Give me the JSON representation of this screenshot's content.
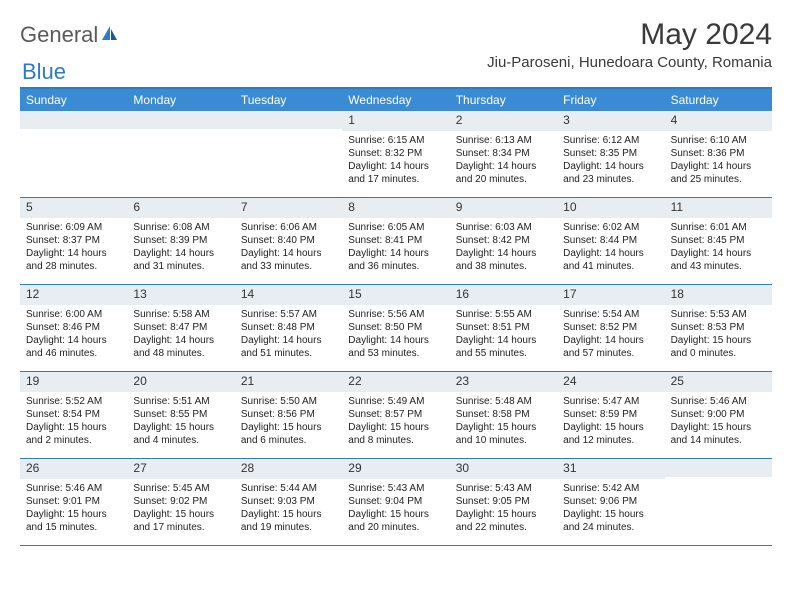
{
  "logo": {
    "general": "General",
    "blue": "Blue"
  },
  "title": "May 2024",
  "location": "Jiu-Paroseni, Hunedoara County, Romania",
  "weekdays": [
    "Sunday",
    "Monday",
    "Tuesday",
    "Wednesday",
    "Thursday",
    "Friday",
    "Saturday"
  ],
  "colors": {
    "header_bg": "#3b8bd4",
    "border": "#2e7cc0",
    "daynum_bg": "#e8edf2",
    "text": "#222222",
    "logo_gray": "#5a5a5a",
    "logo_blue": "#2e7cc0"
  },
  "days": [
    {
      "n": "",
      "sunrise": "",
      "sunset": "",
      "daylight": ""
    },
    {
      "n": "",
      "sunrise": "",
      "sunset": "",
      "daylight": ""
    },
    {
      "n": "",
      "sunrise": "",
      "sunset": "",
      "daylight": ""
    },
    {
      "n": "1",
      "sunrise": "Sunrise: 6:15 AM",
      "sunset": "Sunset: 8:32 PM",
      "daylight": "Daylight: 14 hours and 17 minutes."
    },
    {
      "n": "2",
      "sunrise": "Sunrise: 6:13 AM",
      "sunset": "Sunset: 8:34 PM",
      "daylight": "Daylight: 14 hours and 20 minutes."
    },
    {
      "n": "3",
      "sunrise": "Sunrise: 6:12 AM",
      "sunset": "Sunset: 8:35 PM",
      "daylight": "Daylight: 14 hours and 23 minutes."
    },
    {
      "n": "4",
      "sunrise": "Sunrise: 6:10 AM",
      "sunset": "Sunset: 8:36 PM",
      "daylight": "Daylight: 14 hours and 25 minutes."
    },
    {
      "n": "5",
      "sunrise": "Sunrise: 6:09 AM",
      "sunset": "Sunset: 8:37 PM",
      "daylight": "Daylight: 14 hours and 28 minutes."
    },
    {
      "n": "6",
      "sunrise": "Sunrise: 6:08 AM",
      "sunset": "Sunset: 8:39 PM",
      "daylight": "Daylight: 14 hours and 31 minutes."
    },
    {
      "n": "7",
      "sunrise": "Sunrise: 6:06 AM",
      "sunset": "Sunset: 8:40 PM",
      "daylight": "Daylight: 14 hours and 33 minutes."
    },
    {
      "n": "8",
      "sunrise": "Sunrise: 6:05 AM",
      "sunset": "Sunset: 8:41 PM",
      "daylight": "Daylight: 14 hours and 36 minutes."
    },
    {
      "n": "9",
      "sunrise": "Sunrise: 6:03 AM",
      "sunset": "Sunset: 8:42 PM",
      "daylight": "Daylight: 14 hours and 38 minutes."
    },
    {
      "n": "10",
      "sunrise": "Sunrise: 6:02 AM",
      "sunset": "Sunset: 8:44 PM",
      "daylight": "Daylight: 14 hours and 41 minutes."
    },
    {
      "n": "11",
      "sunrise": "Sunrise: 6:01 AM",
      "sunset": "Sunset: 8:45 PM",
      "daylight": "Daylight: 14 hours and 43 minutes."
    },
    {
      "n": "12",
      "sunrise": "Sunrise: 6:00 AM",
      "sunset": "Sunset: 8:46 PM",
      "daylight": "Daylight: 14 hours and 46 minutes."
    },
    {
      "n": "13",
      "sunrise": "Sunrise: 5:58 AM",
      "sunset": "Sunset: 8:47 PM",
      "daylight": "Daylight: 14 hours and 48 minutes."
    },
    {
      "n": "14",
      "sunrise": "Sunrise: 5:57 AM",
      "sunset": "Sunset: 8:48 PM",
      "daylight": "Daylight: 14 hours and 51 minutes."
    },
    {
      "n": "15",
      "sunrise": "Sunrise: 5:56 AM",
      "sunset": "Sunset: 8:50 PM",
      "daylight": "Daylight: 14 hours and 53 minutes."
    },
    {
      "n": "16",
      "sunrise": "Sunrise: 5:55 AM",
      "sunset": "Sunset: 8:51 PM",
      "daylight": "Daylight: 14 hours and 55 minutes."
    },
    {
      "n": "17",
      "sunrise": "Sunrise: 5:54 AM",
      "sunset": "Sunset: 8:52 PM",
      "daylight": "Daylight: 14 hours and 57 minutes."
    },
    {
      "n": "18",
      "sunrise": "Sunrise: 5:53 AM",
      "sunset": "Sunset: 8:53 PM",
      "daylight": "Daylight: 15 hours and 0 minutes."
    },
    {
      "n": "19",
      "sunrise": "Sunrise: 5:52 AM",
      "sunset": "Sunset: 8:54 PM",
      "daylight": "Daylight: 15 hours and 2 minutes."
    },
    {
      "n": "20",
      "sunrise": "Sunrise: 5:51 AM",
      "sunset": "Sunset: 8:55 PM",
      "daylight": "Daylight: 15 hours and 4 minutes."
    },
    {
      "n": "21",
      "sunrise": "Sunrise: 5:50 AM",
      "sunset": "Sunset: 8:56 PM",
      "daylight": "Daylight: 15 hours and 6 minutes."
    },
    {
      "n": "22",
      "sunrise": "Sunrise: 5:49 AM",
      "sunset": "Sunset: 8:57 PM",
      "daylight": "Daylight: 15 hours and 8 minutes."
    },
    {
      "n": "23",
      "sunrise": "Sunrise: 5:48 AM",
      "sunset": "Sunset: 8:58 PM",
      "daylight": "Daylight: 15 hours and 10 minutes."
    },
    {
      "n": "24",
      "sunrise": "Sunrise: 5:47 AM",
      "sunset": "Sunset: 8:59 PM",
      "daylight": "Daylight: 15 hours and 12 minutes."
    },
    {
      "n": "25",
      "sunrise": "Sunrise: 5:46 AM",
      "sunset": "Sunset: 9:00 PM",
      "daylight": "Daylight: 15 hours and 14 minutes."
    },
    {
      "n": "26",
      "sunrise": "Sunrise: 5:46 AM",
      "sunset": "Sunset: 9:01 PM",
      "daylight": "Daylight: 15 hours and 15 minutes."
    },
    {
      "n": "27",
      "sunrise": "Sunrise: 5:45 AM",
      "sunset": "Sunset: 9:02 PM",
      "daylight": "Daylight: 15 hours and 17 minutes."
    },
    {
      "n": "28",
      "sunrise": "Sunrise: 5:44 AM",
      "sunset": "Sunset: 9:03 PM",
      "daylight": "Daylight: 15 hours and 19 minutes."
    },
    {
      "n": "29",
      "sunrise": "Sunrise: 5:43 AM",
      "sunset": "Sunset: 9:04 PM",
      "daylight": "Daylight: 15 hours and 20 minutes."
    },
    {
      "n": "30",
      "sunrise": "Sunrise: 5:43 AM",
      "sunset": "Sunset: 9:05 PM",
      "daylight": "Daylight: 15 hours and 22 minutes."
    },
    {
      "n": "31",
      "sunrise": "Sunrise: 5:42 AM",
      "sunset": "Sunset: 9:06 PM",
      "daylight": "Daylight: 15 hours and 24 minutes."
    },
    {
      "n": "",
      "sunrise": "",
      "sunset": "",
      "daylight": ""
    }
  ]
}
